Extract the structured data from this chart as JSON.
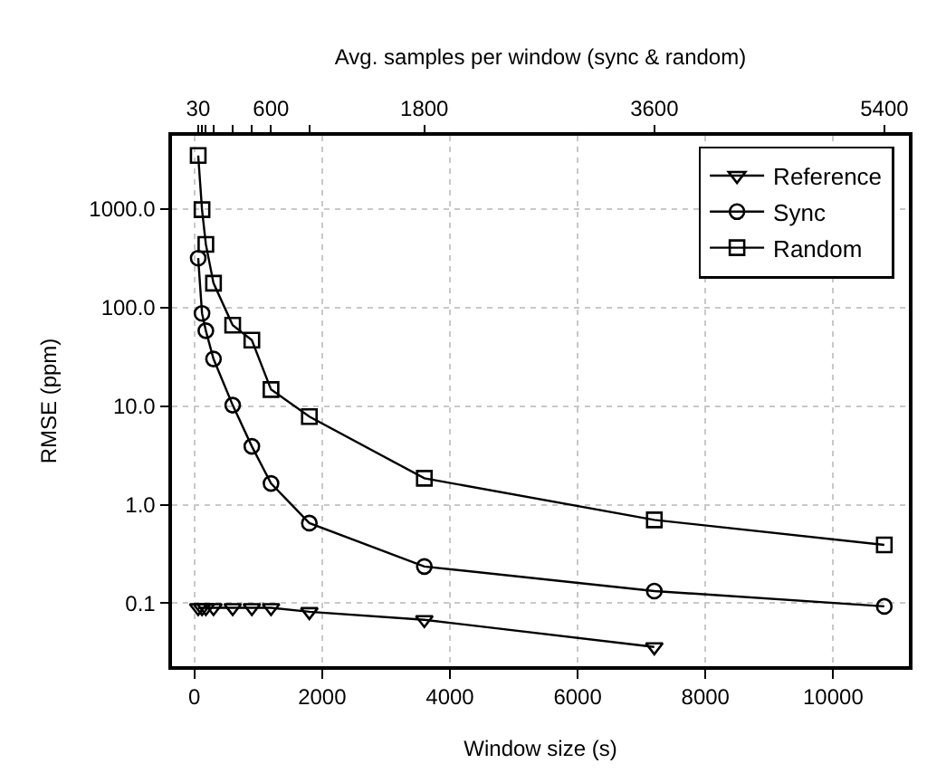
{
  "chart_data": {
    "type": "line",
    "xlabel": "Window size (s)",
    "ylabel": "RMSE (ppm)",
    "x2label": "Avg. samples per window (sync & random)",
    "xlim": [
      -350,
      11185
    ],
    "xticks": [
      0,
      2000,
      4000,
      6000,
      8000,
      10000
    ],
    "x2lim": [
      -175,
      5592
    ],
    "x2ticks": [
      30,
      {
        "value": 60,
        "label": null
      },
      {
        "value": 90,
        "label": null
      },
      {
        "value": 150,
        "label": null
      },
      {
        "value": 300,
        "label": null
      },
      {
        "value": 450,
        "label": null
      },
      600,
      {
        "value": 900,
        "label": null
      },
      1800,
      3600,
      5400
    ],
    "log": "y",
    "ylim": [
      0.023,
      5500
    ],
    "yticks": [
      {
        "value": 0.1,
        "label": "0.1"
      },
      {
        "value": 1,
        "label": "1.0"
      },
      {
        "value": 10,
        "label": "10.0"
      },
      {
        "value": 100,
        "label": "100.0"
      },
      {
        "value": 1000,
        "label": "1000.0"
      }
    ],
    "grid": true,
    "legend": "top right",
    "line_style": "solid",
    "series": [
      {
        "name": "Reference",
        "color": "#000000",
        "marker": "triangle",
        "x": [
          60,
          120,
          180,
          300,
          600,
          900,
          1200,
          1800,
          3600,
          7200
        ],
        "values": [
          0.09,
          0.09,
          0.09,
          0.09,
          0.09,
          0.09,
          0.09,
          0.082,
          0.068,
          0.036
        ]
      },
      {
        "name": "Sync",
        "color": "#000000",
        "marker": "circle",
        "x": [
          60,
          120,
          180,
          300,
          600,
          900,
          1200,
          1800,
          3600,
          7200,
          10800
        ],
        "values": [
          316,
          87,
          58,
          30,
          10.2,
          3.9,
          1.64,
          0.65,
          0.236,
          0.133,
          0.093
        ]
      },
      {
        "name": "Random",
        "color": "#000000",
        "marker": "square",
        "x": [
          60,
          120,
          180,
          300,
          600,
          900,
          1200,
          1800,
          3600,
          7200,
          10800
        ],
        "values": [
          3470,
          980,
          436,
          176,
          66,
          46.6,
          14.7,
          7.8,
          1.85,
          0.7,
          0.39
        ]
      }
    ]
  }
}
